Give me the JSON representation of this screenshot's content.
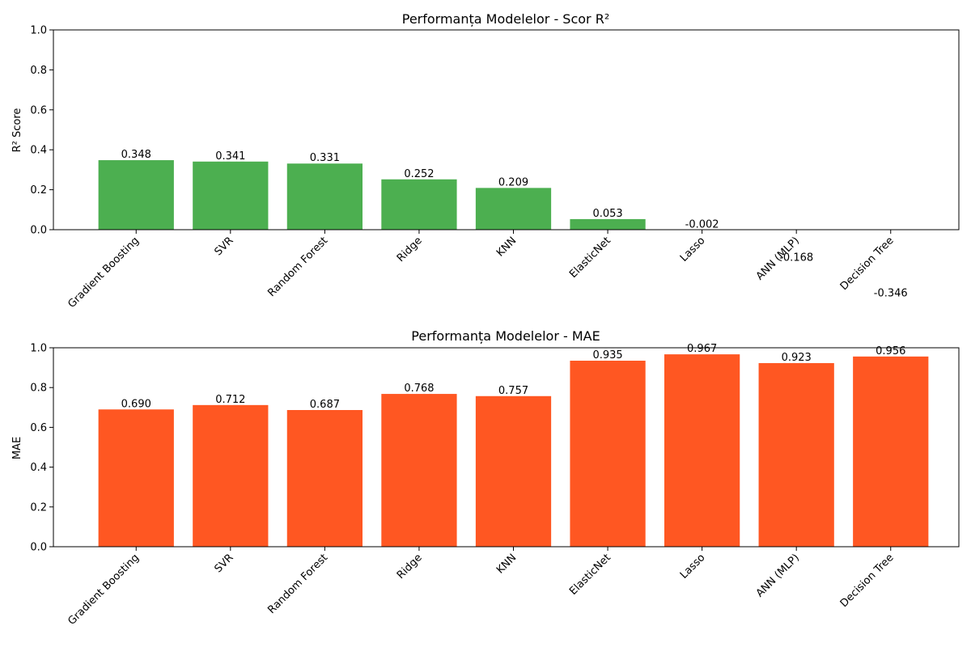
{
  "chart_data": [
    {
      "type": "bar",
      "title": "Performanța Modelelor - Scor R²",
      "xlabel": "",
      "ylabel": "R² Score",
      "ylim": [
        0,
        1.0
      ],
      "yticks": [
        "0.0",
        "0.2",
        "0.4",
        "0.6",
        "0.8",
        "1.0"
      ],
      "categories": [
        "Gradient Boosting",
        "SVR",
        "Random Forest",
        "Ridge",
        "KNN",
        "ElasticNet",
        "Lasso",
        "ANN (MLP)",
        "Decision Tree"
      ],
      "values": [
        0.348,
        0.341,
        0.331,
        0.252,
        0.209,
        0.053,
        -0.002,
        -0.168,
        -0.346
      ],
      "value_labels": [
        "0.348",
        "0.341",
        "0.331",
        "0.252",
        "0.209",
        "0.053",
        "-0.002",
        "-0.168",
        "-0.346"
      ],
      "color": "#4caf50",
      "grid": false
    },
    {
      "type": "bar",
      "title": "Performanța Modelelor - MAE",
      "xlabel": "",
      "ylabel": "MAE",
      "ylim": [
        0,
        1.0
      ],
      "yticks": [
        "0.0",
        "0.2",
        "0.4",
        "0.6",
        "0.8",
        "1.0"
      ],
      "categories": [
        "Gradient Boosting",
        "SVR",
        "Random Forest",
        "Ridge",
        "KNN",
        "ElasticNet",
        "Lasso",
        "ANN (MLP)",
        "Decision Tree"
      ],
      "values": [
        0.69,
        0.712,
        0.687,
        0.768,
        0.757,
        0.935,
        0.967,
        0.923,
        0.956
      ],
      "value_labels": [
        "0.690",
        "0.712",
        "0.687",
        "0.768",
        "0.757",
        "0.935",
        "0.967",
        "0.923",
        "0.956"
      ],
      "color": "#ff5722",
      "grid": false
    }
  ]
}
